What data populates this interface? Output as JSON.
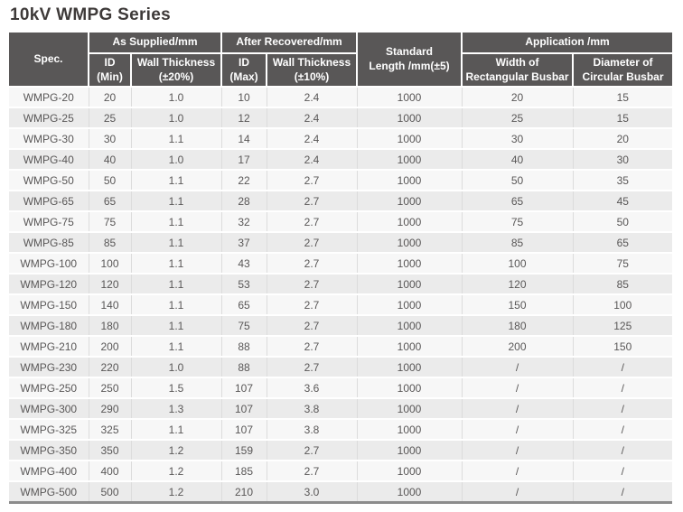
{
  "page_title": "10kV WMPG Series",
  "colors": {
    "title_text": "#3e3a39",
    "header_background": "#595757",
    "header_text": "#ffffff",
    "row_odd_background": "#f7f7f7",
    "row_even_background": "#ebebeb",
    "cell_vertical_border": "#dcdcdc",
    "row_separator": "#ffffff",
    "table_bottom_border": "#8c8c8c",
    "body_text": "#595757"
  },
  "table": {
    "header": {
      "spec": "Spec.",
      "as_supplied": "As Supplied/mm",
      "after_recovered": "After Recovered/mm",
      "standard_length": "Standard\nLength /mm(±5)",
      "application": "Application /mm",
      "id_min": "ID\n(Min)",
      "wall_thickness_20": "Wall Thickness\n(±20%)",
      "id_max": "ID\n(Max)",
      "wall_thickness_10": "Wall Thickness\n(±10%)",
      "width_rect": "Width of\nRectangular Busbar",
      "diameter_circ": "Diameter of\nCircular Busbar"
    },
    "rows": [
      [
        "WMPG-20",
        "20",
        "1.0",
        "10",
        "2.4",
        "1000",
        "20",
        "15"
      ],
      [
        "WMPG-25",
        "25",
        "1.0",
        "12",
        "2.4",
        "1000",
        "25",
        "15"
      ],
      [
        "WMPG-30",
        "30",
        "1.1",
        "14",
        "2.4",
        "1000",
        "30",
        "20"
      ],
      [
        "WMPG-40",
        "40",
        "1.0",
        "17",
        "2.4",
        "1000",
        "40",
        "30"
      ],
      [
        "WMPG-50",
        "50",
        "1.1",
        "22",
        "2.7",
        "1000",
        "50",
        "35"
      ],
      [
        "WMPG-65",
        "65",
        "1.1",
        "28",
        "2.7",
        "1000",
        "65",
        "45"
      ],
      [
        "WMPG-75",
        "75",
        "1.1",
        "32",
        "2.7",
        "1000",
        "75",
        "50"
      ],
      [
        "WMPG-85",
        "85",
        "1.1",
        "37",
        "2.7",
        "1000",
        "85",
        "65"
      ],
      [
        "WMPG-100",
        "100",
        "1.1",
        "43",
        "2.7",
        "1000",
        "100",
        "75"
      ],
      [
        "WMPG-120",
        "120",
        "1.1",
        "53",
        "2.7",
        "1000",
        "120",
        "85"
      ],
      [
        "WMPG-150",
        "140",
        "1.1",
        "65",
        "2.7",
        "1000",
        "150",
        "100"
      ],
      [
        "WMPG-180",
        "180",
        "1.1",
        "75",
        "2.7",
        "1000",
        "180",
        "125"
      ],
      [
        "WMPG-210",
        "200",
        "1.1",
        "88",
        "2.7",
        "1000",
        "200",
        "150"
      ],
      [
        "WMPG-230",
        "220",
        "1.0",
        "88",
        "2.7",
        "1000",
        "/",
        "/"
      ],
      [
        "WMPG-250",
        "250",
        "1.5",
        "107",
        "3.6",
        "1000",
        "/",
        "/"
      ],
      [
        "WMPG-300",
        "290",
        "1.3",
        "107",
        "3.8",
        "1000",
        "/",
        "/"
      ],
      [
        "WMPG-325",
        "325",
        "1.1",
        "107",
        "3.8",
        "1000",
        "/",
        "/"
      ],
      [
        "WMPG-350",
        "350",
        "1.2",
        "159",
        "2.7",
        "1000",
        "/",
        "/"
      ],
      [
        "WMPG-400",
        "400",
        "1.2",
        "185",
        "2.7",
        "1000",
        "/",
        "/"
      ],
      [
        "WMPG-500",
        "500",
        "1.2",
        "210",
        "3.0",
        "1000",
        "/",
        "/"
      ]
    ]
  }
}
